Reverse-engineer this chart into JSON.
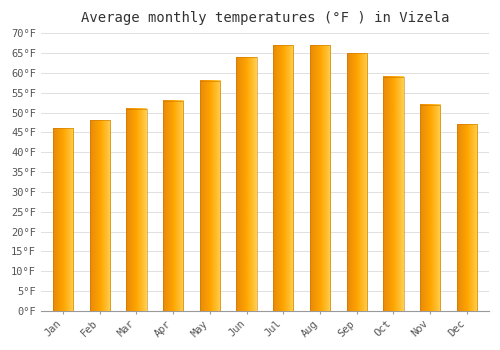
{
  "months": [
    "Jan",
    "Feb",
    "Mar",
    "Apr",
    "May",
    "Jun",
    "Jul",
    "Aug",
    "Sep",
    "Oct",
    "Nov",
    "Dec"
  ],
  "values": [
    46,
    48,
    51,
    53,
    58,
    64,
    67,
    67,
    65,
    59,
    52,
    47
  ],
  "bar_color_left": "#E8890A",
  "bar_color_right": "#FFD050",
  "bar_color_mid": "#FFA500",
  "title": "Average monthly temperatures (°F ) in Vizela",
  "ylim": [
    0,
    70
  ],
  "ytick_step": 5,
  "background_color": "#ffffff",
  "plot_bg_color": "#ffffff",
  "grid_color": "#e0e0e0",
  "title_fontsize": 10,
  "tick_fontsize": 7.5,
  "font_family": "monospace"
}
